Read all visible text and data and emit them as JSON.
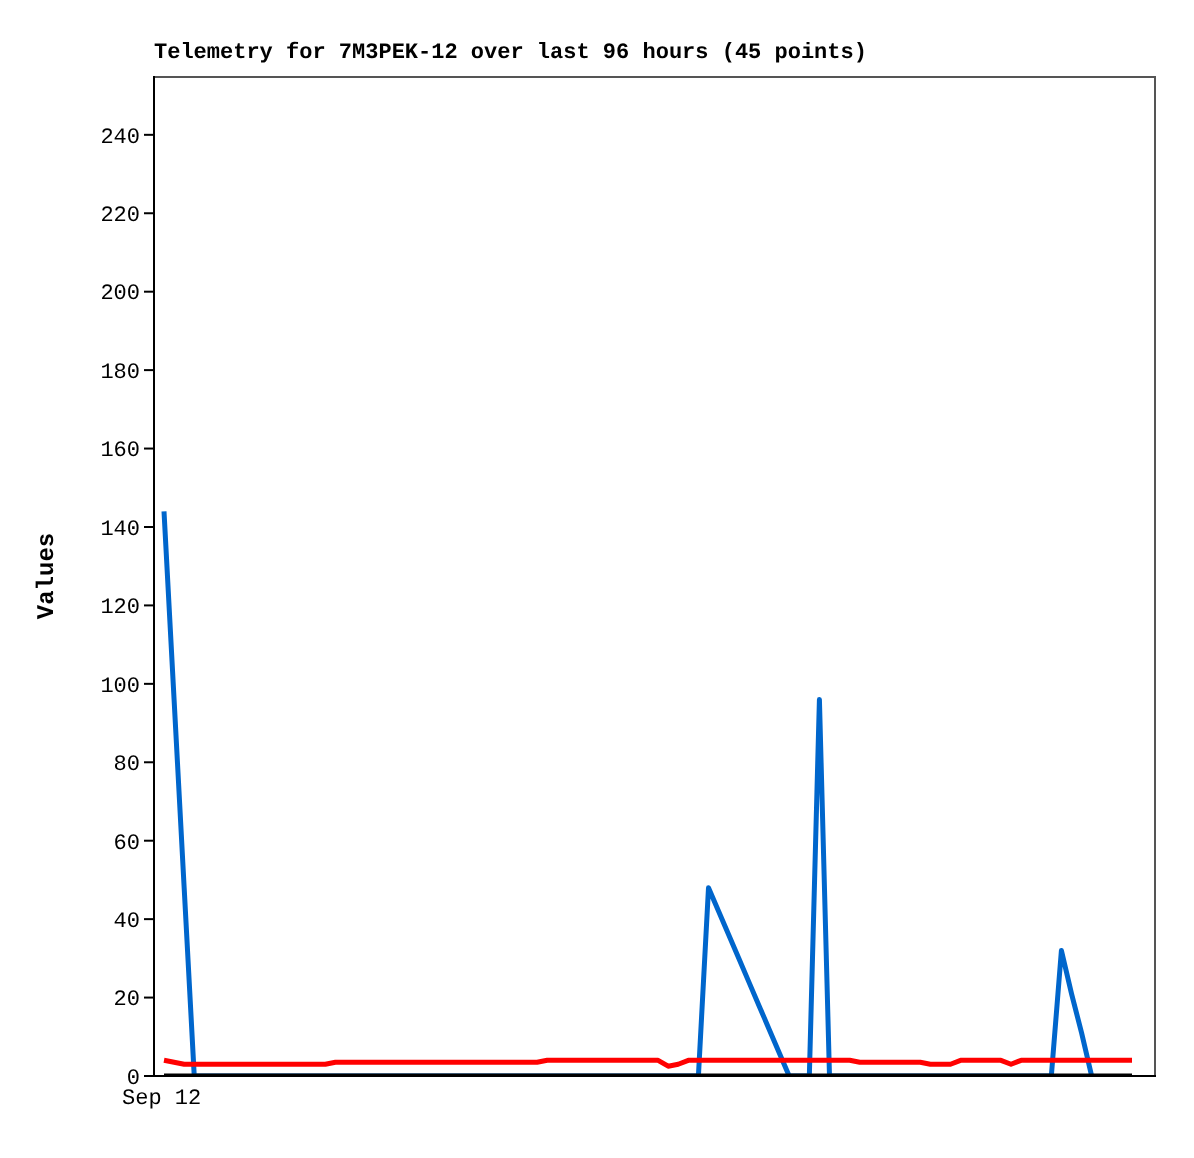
{
  "chart_data": {
    "type": "line",
    "title": "Telemetry for 7M3PEK-12 over last 96 hours (45 points)",
    "ylabel": "Values",
    "annotations": [
      "Sep 12"
    ],
    "categories": [
      null,
      null,
      null,
      null,
      null,
      null,
      null,
      null,
      null,
      null,
      null,
      null,
      null,
      null,
      null,
      null,
      null,
      null,
      null,
      null,
      null,
      null,
      null,
      null,
      null,
      null,
      null,
      null,
      null,
      null,
      null,
      null,
      null,
      null,
      null,
      null,
      null,
      null,
      null,
      null,
      null,
      null,
      null,
      null,
      null,
      null,
      null,
      null,
      null,
      null,
      null,
      null,
      null,
      null,
      null,
      null,
      null,
      null,
      null,
      null,
      null,
      null,
      null,
      null,
      null,
      null,
      null,
      null,
      null,
      null,
      null,
      null,
      null,
      null,
      null,
      null,
      null,
      null,
      null,
      null,
      null,
      null,
      null,
      null,
      null,
      null,
      null,
      null,
      null,
      null,
      null,
      null,
      null,
      null,
      null,
      null,
      null
    ],
    "ylim": [
      0,
      255
    ],
    "yticks": [
      0,
      20,
      40,
      60,
      80,
      100,
      120,
      140,
      160,
      180,
      200,
      220,
      240
    ],
    "grid": false,
    "legend": false,
    "marker": "none",
    "line_style": "solid",
    "series": [
      {
        "color": "#0066cc",
        "values": [
          144,
          96,
          48,
          0,
          null,
          null,
          null,
          null,
          null,
          null,
          null,
          null,
          null,
          null,
          null,
          null,
          null,
          null,
          null,
          null,
          null,
          null,
          null,
          null,
          null,
          null,
          null,
          null,
          null,
          null,
          null,
          null,
          null,
          null,
          null,
          null,
          null,
          null,
          null,
          null,
          null,
          null,
          null,
          null,
          null,
          null,
          null,
          null,
          null,
          null,
          null,
          null,
          null,
          0,
          48,
          42,
          36,
          30,
          24,
          18,
          12,
          6,
          0,
          null,
          0,
          96,
          0,
          null,
          null,
          null,
          null,
          null,
          null,
          null,
          null,
          null,
          null,
          null,
          null,
          null,
          null,
          null,
          null,
          null,
          null,
          null,
          null,
          null,
          0,
          32,
          21,
          11,
          0,
          null,
          null,
          null,
          null
        ]
      },
      {
        "color": "#ff0000",
        "values": [
          4,
          3.5,
          3,
          3,
          3,
          3,
          3,
          3,
          3,
          3,
          3,
          3,
          3,
          3,
          3,
          3,
          3,
          3.5,
          3.5,
          3.5,
          3.5,
          3.5,
          3.5,
          3.5,
          3.5,
          3.5,
          3.5,
          3.5,
          3.5,
          3.5,
          3.5,
          3.5,
          3.5,
          3.5,
          3.5,
          3.5,
          3.5,
          3.5,
          4,
          4,
          4,
          4,
          4,
          4,
          4,
          4,
          4,
          4,
          4,
          4,
          2.5,
          3,
          4,
          4,
          4,
          4,
          4,
          4,
          4,
          4,
          4,
          4,
          4,
          4,
          4,
          4,
          4,
          4,
          4,
          3.5,
          3.5,
          3.5,
          3.5,
          3.5,
          3.5,
          3.5,
          3,
          3,
          3,
          4,
          4,
          4,
          4,
          4,
          3,
          4,
          4,
          4,
          4,
          4,
          4,
          4,
          4,
          4,
          4,
          4,
          4
        ]
      },
      {
        "color": "#000000",
        "values": [
          0,
          0,
          0,
          0,
          0,
          0,
          0,
          0,
          0,
          0,
          0,
          0,
          0,
          0,
          0,
          0,
          0,
          0,
          0,
          0,
          0,
          0,
          0,
          0,
          0,
          0,
          0,
          0,
          0,
          0,
          0,
          0,
          0,
          0,
          0,
          0,
          0,
          0,
          0,
          0,
          0,
          0,
          0,
          0,
          0,
          0,
          0,
          0,
          0,
          0,
          0,
          0,
          0,
          0,
          0,
          0,
          0,
          0,
          0,
          0,
          0,
          0,
          0,
          0,
          0,
          0,
          0,
          0,
          0,
          0,
          0,
          0,
          0,
          0,
          0,
          0,
          0,
          0,
          0,
          0,
          0,
          0,
          0,
          0,
          0,
          0,
          0,
          0,
          0,
          0,
          0,
          0,
          0,
          0,
          0,
          0,
          0
        ]
      }
    ]
  }
}
